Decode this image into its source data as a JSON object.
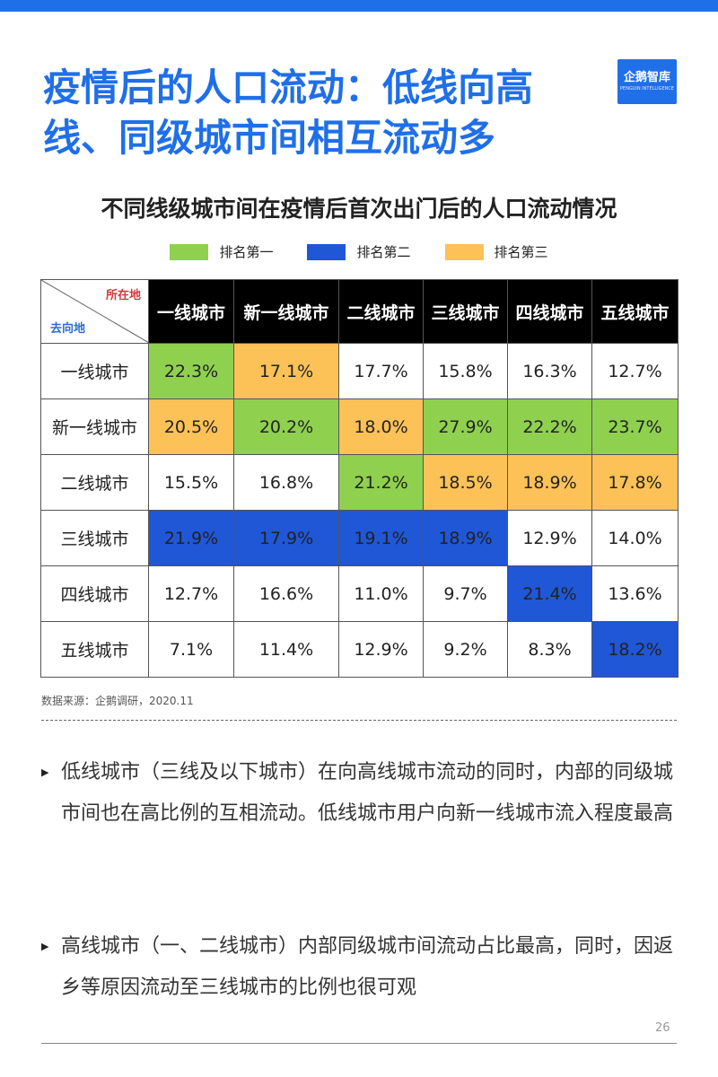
{
  "title": "疫情后的人口流动：低线向高线、同级城市间相互流动多",
  "logo": {
    "mark": "企鹅智库",
    "sub": "PENGUIN INTELLIGENCE"
  },
  "subtitle": "不同线级城市间在疫情后首次出门后的人口流动情况",
  "legend": [
    {
      "label": "排名第一",
      "color": "#8fd14f"
    },
    {
      "label": "排名第二",
      "color": "#1f57d6"
    },
    {
      "label": "排名第三",
      "color": "#fcc157"
    }
  ],
  "table": {
    "corner_from": "所在地",
    "corner_to": "去向地",
    "columns": [
      "一线城市",
      "新一线城市",
      "二线城市",
      "三线城市",
      "四线城市",
      "五线城市"
    ],
    "rows": [
      {
        "label": "一线城市",
        "values": [
          "22.3%",
          "17.1%",
          "17.7%",
          "15.8%",
          "16.3%",
          "12.7%"
        ],
        "ranks": [
          1,
          3,
          0,
          0,
          0,
          0
        ]
      },
      {
        "label": "新一线城市",
        "values": [
          "20.5%",
          "20.2%",
          "18.0%",
          "27.9%",
          "22.2%",
          "23.7%"
        ],
        "ranks": [
          3,
          1,
          3,
          1,
          1,
          1
        ]
      },
      {
        "label": "二线城市",
        "values": [
          "15.5%",
          "16.8%",
          "21.2%",
          "18.5%",
          "18.9%",
          "17.8%"
        ],
        "ranks": [
          0,
          0,
          1,
          3,
          3,
          3
        ]
      },
      {
        "label": "三线城市",
        "values": [
          "21.9%",
          "17.9%",
          "19.1%",
          "18.9%",
          "12.9%",
          "14.0%"
        ],
        "ranks": [
          2,
          2,
          2,
          2,
          0,
          0
        ]
      },
      {
        "label": "四线城市",
        "values": [
          "12.7%",
          "16.6%",
          "11.0%",
          "9.7%",
          "21.4%",
          "13.6%"
        ],
        "ranks": [
          0,
          0,
          0,
          0,
          2,
          0
        ]
      },
      {
        "label": "五线城市",
        "values": [
          "7.1%",
          "11.4%",
          "12.9%",
          "9.2%",
          "8.3%",
          "18.2%"
        ],
        "ranks": [
          0,
          0,
          0,
          0,
          0,
          2
        ]
      }
    ]
  },
  "source": "数据来源：企鹅调研，2020.11",
  "bullets": [
    {
      "marker": "▶",
      "text": "低线城市（三线及以下城市）在向高线城市流动的同时，内部的同级城市间也在高比例的互相流动。低线城市用户向新一线城市流入程度最高"
    },
    {
      "marker": "▶",
      "text": "高线城市（一、二线城市）内部同级城市间流动占比最高，同时，因返乡等原因流动至三线城市的比例也很可观"
    }
  ],
  "page_number": "26"
}
